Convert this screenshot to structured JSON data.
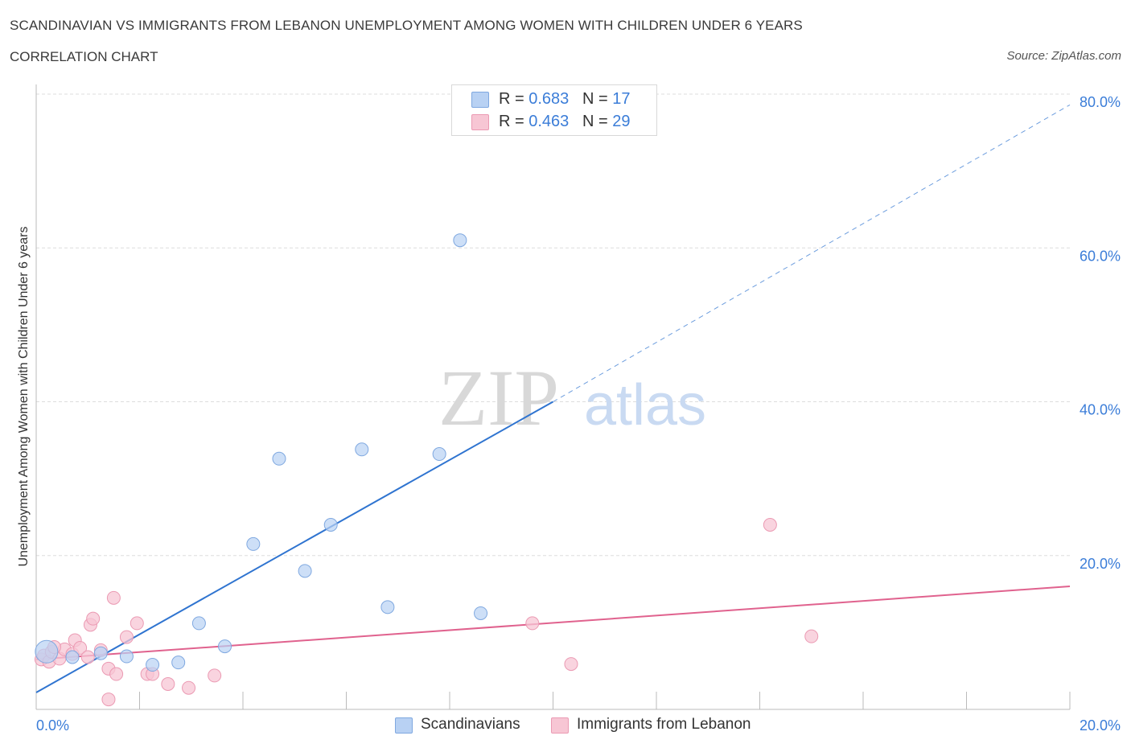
{
  "header": {
    "title": "SCANDINAVIAN VS IMMIGRANTS FROM LEBANON UNEMPLOYMENT AMONG WOMEN WITH CHILDREN UNDER 6 YEARS",
    "subtitle": "CORRELATION CHART",
    "source": "Source: ZipAtlas.com"
  },
  "watermark": {
    "zip": "ZIP",
    "atlas": "atlas"
  },
  "legend": {
    "rows": [
      {
        "r_label": "R =",
        "r_value": "0.683",
        "n_label": "N =",
        "n_value": "17"
      },
      {
        "r_label": "R =",
        "r_value": "0.463",
        "n_label": "N =",
        "n_value": "29"
      }
    ]
  },
  "colors": {
    "scandinavian_fill": "#b8d1f3",
    "scandinavian_stroke": "#7fa8e0",
    "scandinavian_line": "#2f74d0",
    "lebanon_fill": "#f7c6d4",
    "lebanon_stroke": "#eb9ab3",
    "lebanon_line": "#e0628e",
    "axis_label": "#3b7dd8",
    "grid": "#dddddd"
  },
  "chart_data": {
    "type": "scatter",
    "title": "SCANDINAVIAN VS IMMIGRANTS FROM LEBANON UNEMPLOYMENT AMONG WOMEN WITH CHILDREN UNDER 6 YEARS",
    "xlabel": "",
    "ylabel": "Unemployment Among Women with Children Under 6 years",
    "xlim": [
      0,
      20
    ],
    "ylim": [
      0,
      80
    ],
    "x_tick_labels": [
      "0.0%",
      "20.0%"
    ],
    "y_tick_values": [
      20,
      40,
      60,
      80
    ],
    "y_tick_labels": [
      "20.0%",
      "40.0%",
      "60.0%",
      "80.0%"
    ],
    "grid": true,
    "legend_position": "top-center",
    "series": [
      {
        "name": "Scandinavians",
        "r": 0.683,
        "n": 17,
        "points": [
          {
            "x": 0.2,
            "y": 7.5
          },
          {
            "x": 0.7,
            "y": 6.8
          },
          {
            "x": 1.25,
            "y": 7.3
          },
          {
            "x": 1.75,
            "y": 6.9
          },
          {
            "x": 2.25,
            "y": 5.8
          },
          {
            "x": 2.75,
            "y": 6.1
          },
          {
            "x": 3.15,
            "y": 11.2
          },
          {
            "x": 3.65,
            "y": 8.2
          },
          {
            "x": 4.2,
            "y": 21.5
          },
          {
            "x": 4.7,
            "y": 32.6
          },
          {
            "x": 5.2,
            "y": 18.0
          },
          {
            "x": 5.7,
            "y": 24.0
          },
          {
            "x": 6.3,
            "y": 33.8
          },
          {
            "x": 6.8,
            "y": 13.3
          },
          {
            "x": 7.8,
            "y": 33.2
          },
          {
            "x": 8.2,
            "y": 61.0
          },
          {
            "x": 8.6,
            "y": 12.5
          }
        ],
        "trend": {
          "x": [
            0,
            10
          ],
          "y": [
            2.2,
            40.0
          ]
        },
        "trend_extension": {
          "x": [
            10,
            20
          ],
          "y": [
            40.0,
            78.6
          ]
        }
      },
      {
        "name": "Immigrants from Lebanon",
        "r": 0.463,
        "n": 29,
        "points": [
          {
            "x": 0.1,
            "y": 6.5
          },
          {
            "x": 0.15,
            "y": 7.0
          },
          {
            "x": 0.25,
            "y": 6.2
          },
          {
            "x": 0.3,
            "y": 7.5
          },
          {
            "x": 0.45,
            "y": 6.6
          },
          {
            "x": 0.55,
            "y": 7.8
          },
          {
            "x": 0.7,
            "y": 7.2
          },
          {
            "x": 0.75,
            "y": 9.0
          },
          {
            "x": 0.85,
            "y": 8.0
          },
          {
            "x": 1.0,
            "y": 6.8
          },
          {
            "x": 1.05,
            "y": 11.0
          },
          {
            "x": 1.1,
            "y": 11.8
          },
          {
            "x": 1.25,
            "y": 7.7
          },
          {
            "x": 1.4,
            "y": 5.3
          },
          {
            "x": 1.5,
            "y": 14.5
          },
          {
            "x": 1.55,
            "y": 4.6
          },
          {
            "x": 1.4,
            "y": 1.3
          },
          {
            "x": 1.75,
            "y": 9.4
          },
          {
            "x": 1.95,
            "y": 11.2
          },
          {
            "x": 2.15,
            "y": 4.6
          },
          {
            "x": 2.25,
            "y": 4.6
          },
          {
            "x": 2.55,
            "y": 3.3
          },
          {
            "x": 2.95,
            "y": 2.8
          },
          {
            "x": 3.45,
            "y": 4.4
          },
          {
            "x": 9.6,
            "y": 11.2
          },
          {
            "x": 10.35,
            "y": 5.9
          },
          {
            "x": 14.2,
            "y": 24.0
          },
          {
            "x": 15.0,
            "y": 9.5
          },
          {
            "x": 0.35,
            "y": 8.1
          }
        ],
        "trend": {
          "x": [
            0,
            20
          ],
          "y": [
            6.5,
            16.0
          ]
        }
      }
    ]
  },
  "bottom_legend": {
    "items": [
      {
        "label": "Scandinavians"
      },
      {
        "label": "Immigrants from Lebanon"
      }
    ]
  }
}
